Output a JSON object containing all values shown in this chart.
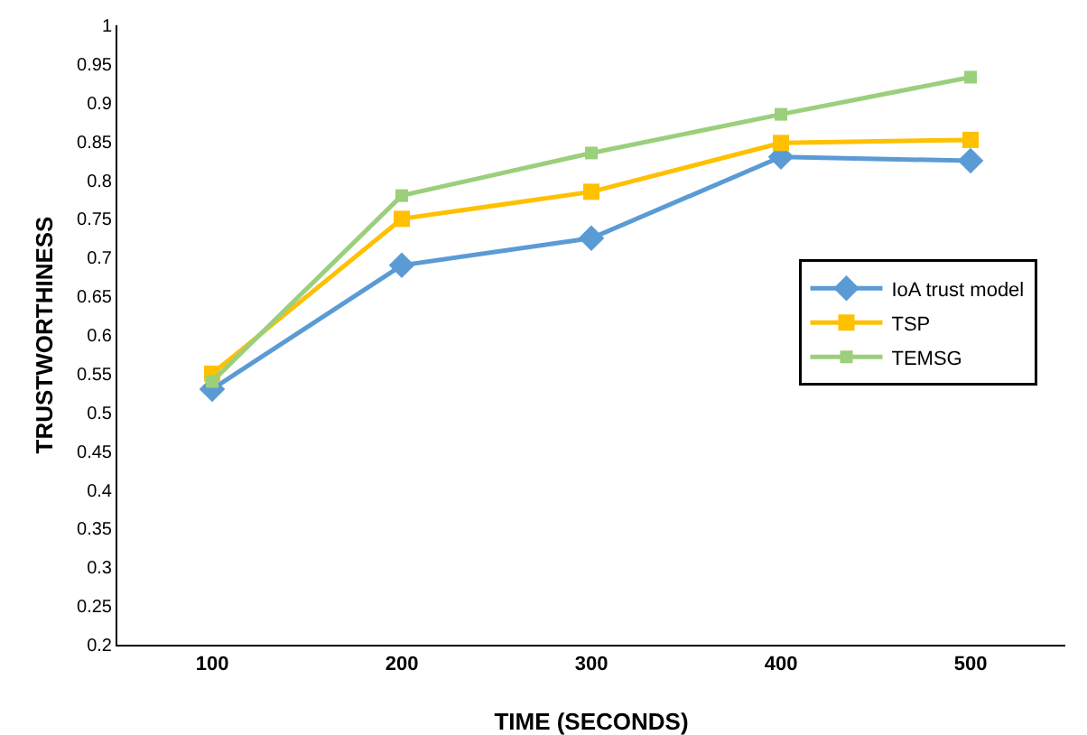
{
  "chart_data": {
    "type": "line",
    "xlabel": "TIME (SECONDS)",
    "ylabel": "TRUSTWORTHINESS",
    "categories": [
      "100",
      "200",
      "300",
      "400",
      "500"
    ],
    "ylim": [
      0.2,
      1
    ],
    "yticks": [
      {
        "value": 0.2,
        "label": "0.2"
      },
      {
        "value": 0.25,
        "label": "0.25"
      },
      {
        "value": 0.3,
        "label": "0.3"
      },
      {
        "value": 0.35,
        "label": "0.35"
      },
      {
        "value": 0.4,
        "label": "0.4"
      },
      {
        "value": 0.45,
        "label": "0.45"
      },
      {
        "value": 0.5,
        "label": "0.5"
      },
      {
        "value": 0.55,
        "label": "0.55"
      },
      {
        "value": 0.6,
        "label": "0.6"
      },
      {
        "value": 0.65,
        "label": "0.65"
      },
      {
        "value": 0.7,
        "label": "0.7"
      },
      {
        "value": 0.75,
        "label": "0.75"
      },
      {
        "value": 0.8,
        "label": "0.8"
      },
      {
        "value": 0.85,
        "label": "0.85"
      },
      {
        "value": 0.9,
        "label": "0.9"
      },
      {
        "value": 0.95,
        "label": "0.95"
      },
      {
        "value": 1,
        "label": "1"
      }
    ],
    "grid": false,
    "legend": "right",
    "line_style": "solid",
    "series": [
      {
        "name": "IoA trust model",
        "color": "#5b9bd5",
        "marker": "diamond",
        "values": [
          0.53,
          0.69,
          0.725,
          0.83,
          0.825
        ]
      },
      {
        "name": "TSP",
        "color": "#ffc000",
        "marker": "square",
        "values": [
          0.55,
          0.75,
          0.785,
          0.848,
          0.852
        ]
      },
      {
        "name": "TEMSG",
        "color": "#9bcf7c",
        "marker": "square",
        "values": [
          0.54,
          0.78,
          0.835,
          0.885,
          0.933
        ]
      }
    ]
  }
}
